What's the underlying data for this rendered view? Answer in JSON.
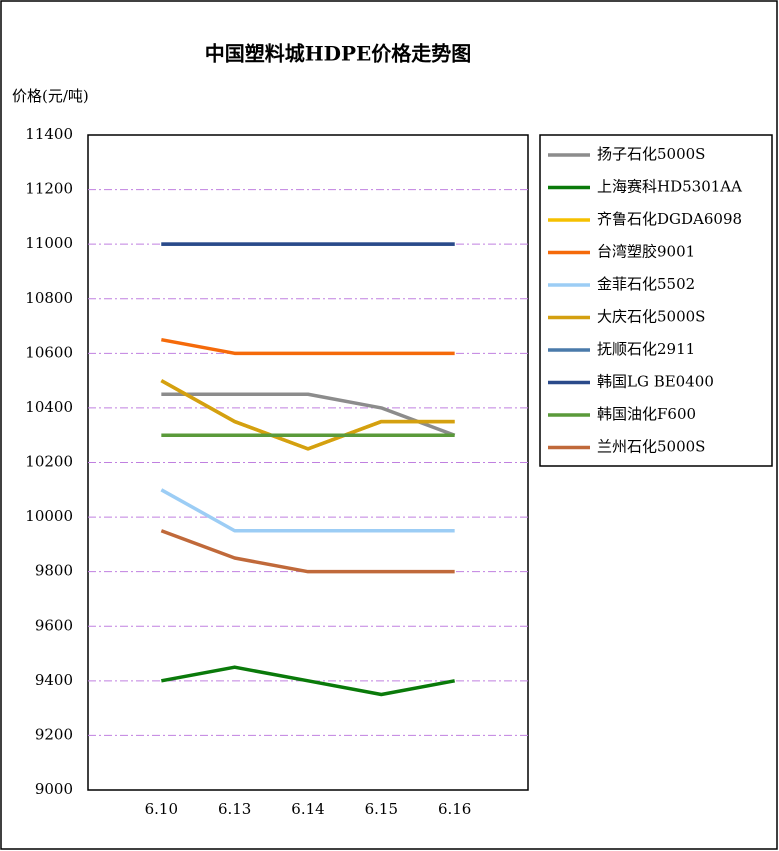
{
  "chart_data": {
    "type": "line",
    "title": "中国塑料城HDPE价格走势图",
    "y_label": "价格(元/吨)",
    "categories": [
      "6.10",
      "6.13",
      "6.14",
      "6.15",
      "6.16"
    ],
    "ylim": [
      9000,
      11400
    ],
    "yticks": [
      9000,
      9200,
      9400,
      9600,
      9800,
      10000,
      10200,
      10400,
      10600,
      10800,
      11000,
      11200,
      11400
    ],
    "grid": true,
    "series": [
      {
        "name": "扬子石化5000S",
        "color": "#8c8c8c",
        "values": [
          10450,
          10450,
          10450,
          10400,
          10300
        ]
      },
      {
        "name": "上海赛科HD5301AA",
        "color": "#0a7a0a",
        "values": [
          9400,
          9450,
          9400,
          9350,
          9400
        ]
      },
      {
        "name": "齐鲁石化DGDA6098",
        "color": "#f5c000",
        "values": [
          10500,
          10350,
          10250,
          10350,
          10350
        ]
      },
      {
        "name": "台湾塑胶9001",
        "color": "#f56a0a",
        "values": [
          10650,
          10600,
          10600,
          10600,
          10600
        ]
      },
      {
        "name": "金菲石化5502",
        "color": "#9ccdf5",
        "values": [
          10100,
          9950,
          9950,
          9950,
          9950
        ]
      },
      {
        "name": "大庆石化5000S",
        "color": "#d4a010",
        "values": [
          10500,
          10350,
          10250,
          10350,
          10350
        ]
      },
      {
        "name": "抚顺石化2911",
        "color": "#4a7aaa",
        "values": [
          11000,
          11000,
          11000,
          11000,
          11000
        ]
      },
      {
        "name": "韩国LG BE0400",
        "color": "#2a4a8a",
        "values": [
          11000,
          11000,
          11000,
          11000,
          11000
        ]
      },
      {
        "name": "韩国油化F600",
        "color": "#5a9a3a",
        "values": [
          10300,
          10300,
          10300,
          10300,
          10300
        ]
      },
      {
        "name": "兰州石化5000S",
        "color": "#c0693a",
        "values": [
          9950,
          9850,
          9800,
          9800,
          9800
        ]
      }
    ]
  }
}
